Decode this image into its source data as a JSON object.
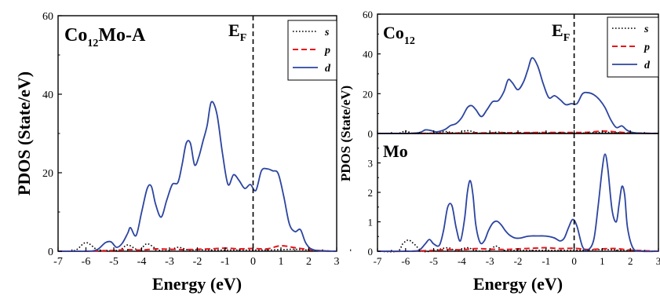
{
  "colors": {
    "s": "#000000",
    "p": "#e8141b",
    "d": "#2b44a0",
    "fermi": "#000000"
  },
  "chart_data": [
    {
      "id": "left",
      "type": "line",
      "title_main": "Co",
      "title_sub": "12",
      "title_rest": "Mo-A",
      "xlabel": "Energy (eV)",
      "ylabel": "PDOS (State/eV)",
      "xlim": [
        -7,
        3
      ],
      "ylim": [
        0,
        60
      ],
      "xticks": [
        "-7",
        "-6",
        "-5",
        "-4",
        "-3",
        "-2",
        "-1",
        "0",
        "1",
        "2",
        "3"
      ],
      "yticks": [
        "0",
        "20",
        "40",
        "60"
      ],
      "fermi_label_main": "E",
      "fermi_label_sub": "F",
      "fermi_x": 0,
      "legend": [
        "s",
        "p",
        "d"
      ],
      "series": [
        {
          "name": "s",
          "style": "dotted",
          "x": [
            -7,
            -6.4,
            -6.0,
            -5.6,
            -5.3,
            -4.8,
            -4.5,
            -4.1,
            -3.8,
            -3.4,
            -3.0,
            -2.7,
            -2.3,
            -2.0,
            -1.5,
            -1.0,
            -0.5,
            0,
            0.5,
            1.0,
            1.5,
            2.0,
            3.0
          ],
          "y": [
            0,
            0.2,
            2.2,
            0.4,
            0.2,
            0.3,
            1.6,
            0.3,
            1.9,
            0.3,
            0.2,
            1.0,
            0.3,
            0.4,
            0.3,
            0.3,
            0.3,
            0.3,
            0.3,
            0.4,
            0.5,
            0.3,
            0
          ]
        },
        {
          "name": "p",
          "style": "dashed",
          "x": [
            -7,
            -6.5,
            -6.0,
            -5.5,
            -5.0,
            -4.5,
            -4.0,
            -3.5,
            -3.0,
            -2.5,
            -2.0,
            -1.5,
            -1.0,
            -0.5,
            0,
            0.5,
            1.0,
            1.5,
            2.0,
            2.5,
            3.0
          ],
          "y": [
            0,
            0,
            0,
            0.1,
            0.2,
            0.4,
            0.3,
            0.6,
            0.5,
            0.4,
            0.5,
            0.6,
            0.8,
            0.6,
            0.7,
            0.6,
            1.4,
            0.9,
            0.4,
            0.1,
            0
          ]
        },
        {
          "name": "d",
          "style": "solid",
          "x": [
            -7,
            -6.0,
            -5.6,
            -5.3,
            -5.1,
            -4.9,
            -4.7,
            -4.5,
            -4.4,
            -4.2,
            -4.0,
            -3.8,
            -3.65,
            -3.5,
            -3.3,
            -3.1,
            -2.9,
            -2.7,
            -2.55,
            -2.4,
            -2.25,
            -2.1,
            -1.95,
            -1.8,
            -1.65,
            -1.5,
            -1.3,
            -1.1,
            -0.9,
            -0.7,
            -0.5,
            -0.3,
            -0.1,
            0.1,
            0.3,
            0.5,
            0.7,
            0.9,
            1.1,
            1.3,
            1.5,
            1.7,
            1.9,
            2.2,
            3.0
          ],
          "y": [
            0,
            0,
            0.4,
            2.2,
            2.4,
            1.0,
            2.0,
            4.6,
            6.0,
            4.0,
            10.0,
            16.0,
            16.5,
            12.0,
            8.7,
            13.0,
            17.0,
            17.5,
            22.0,
            27.5,
            27.5,
            22.0,
            24.0,
            28.0,
            32.0,
            38.0,
            35.0,
            25.0,
            17.0,
            19.5,
            18.0,
            16.0,
            17.0,
            15.5,
            20.5,
            21.0,
            20.5,
            19.8,
            14.0,
            7.0,
            5.0,
            5.5,
            2.0,
            0.3,
            0
          ]
        }
      ]
    },
    {
      "id": "right-top",
      "type": "line",
      "title_main": "Co",
      "title_sub": "12",
      "xlim": [
        -7,
        3
      ],
      "ylim": [
        0,
        60
      ],
      "yticks": [
        "0",
        "20",
        "40",
        "60"
      ],
      "fermi_label_main": "E",
      "fermi_label_sub": "F",
      "fermi_x": 0,
      "legend": [
        "s",
        "p",
        "d"
      ],
      "series": [
        {
          "name": "s",
          "style": "dotted",
          "x": [
            -7,
            -6.3,
            -6.0,
            -5.7,
            -5.0,
            -4.6,
            -4.2,
            -3.8,
            -3.4,
            -3.0,
            -2.7,
            -2.3,
            -1.5,
            -0.5,
            0,
            0.5,
            1.0,
            1.5,
            2.0,
            3.0
          ],
          "y": [
            0,
            0,
            1.2,
            0,
            0.2,
            1.0,
            0.2,
            1.4,
            0.2,
            0.2,
            0.7,
            0.2,
            0.3,
            0.3,
            0.2,
            0.3,
            0.6,
            0.5,
            0.2,
            0
          ]
        },
        {
          "name": "p",
          "style": "dashed",
          "x": [
            -7,
            -6.0,
            -5.0,
            -4.0,
            -3.0,
            -2.0,
            -1.0,
            0,
            0.5,
            1.0,
            1.5,
            2.0,
            3.0
          ],
          "y": [
            0,
            0,
            0.1,
            0.2,
            0.3,
            0.4,
            0.5,
            0.5,
            0.6,
            1.2,
            0.8,
            0.3,
            0
          ]
        },
        {
          "name": "d",
          "style": "solid",
          "x": [
            -7,
            -6.0,
            -5.5,
            -5.3,
            -5.1,
            -4.9,
            -4.6,
            -4.4,
            -4.2,
            -4.0,
            -3.8,
            -3.65,
            -3.5,
            -3.3,
            -3.1,
            -2.9,
            -2.7,
            -2.5,
            -2.35,
            -2.2,
            -2.0,
            -1.8,
            -1.65,
            -1.5,
            -1.3,
            -1.1,
            -0.9,
            -0.7,
            -0.5,
            -0.3,
            -0.1,
            0.1,
            0.3,
            0.5,
            0.7,
            0.9,
            1.1,
            1.3,
            1.5,
            1.7,
            1.9,
            2.2,
            3.0
          ],
          "y": [
            0,
            0,
            0.5,
            1.8,
            1.5,
            0.8,
            2.0,
            4.0,
            5.0,
            8.0,
            13.0,
            14.0,
            12.0,
            8.5,
            12.0,
            16.0,
            16.5,
            21.0,
            27.0,
            25.5,
            22.0,
            26.0,
            32.0,
            38.0,
            34.0,
            25.0,
            18.0,
            19.0,
            17.0,
            14.5,
            15.0,
            15.0,
            20.0,
            20.5,
            19.5,
            17.0,
            13.0,
            7.0,
            3.0,
            3.8,
            1.5,
            0.3,
            0
          ]
        }
      ]
    },
    {
      "id": "right-bottom",
      "type": "line",
      "title_main": "Mo",
      "xlabel": "Energy (eV)",
      "xlim": [
        -7,
        3
      ],
      "ylim": [
        0,
        4
      ],
      "xticks": [
        "-7",
        "-6",
        "-5",
        "-4",
        "-3",
        "-2",
        "-1",
        "0",
        "1",
        "2",
        "3"
      ],
      "yticks": [
        "0",
        "1",
        "2",
        "3"
      ],
      "fermi_x": 0,
      "series": [
        {
          "name": "s",
          "style": "dotted",
          "x": [
            -7,
            -6.3,
            -6.1,
            -5.9,
            -5.7,
            -5.4,
            -5.0,
            -4.5,
            -4.2,
            -3.8,
            -3.5,
            -3.0,
            -2.8,
            -2.5,
            -2.0,
            -1.0,
            0,
            0.5,
            1.0,
            1.5,
            2.0,
            3.0
          ],
          "y": [
            0,
            0,
            0.25,
            0.38,
            0.25,
            0,
            0.02,
            0.12,
            0.02,
            0.12,
            0.02,
            0.02,
            0.18,
            0.03,
            0.03,
            0.03,
            0.03,
            0.04,
            0.06,
            0.04,
            0.02,
            0
          ]
        },
        {
          "name": "p",
          "style": "dashed",
          "x": [
            -7,
            -6.0,
            -5.0,
            -4.5,
            -4.0,
            -3.5,
            -3.0,
            -2.5,
            -2.0,
            -1.5,
            -1.0,
            -0.5,
            0,
            0.5,
            1.0,
            1.5,
            2.0,
            3.0
          ],
          "y": [
            0,
            0,
            0.03,
            0.06,
            0.05,
            0.09,
            0.07,
            0.06,
            0.08,
            0.1,
            0.12,
            0.09,
            0.1,
            0.06,
            0.08,
            0.09,
            0.04,
            0
          ]
        },
        {
          "name": "d",
          "style": "solid",
          "x": [
            -7,
            -5.8,
            -5.5,
            -5.3,
            -5.15,
            -5.0,
            -4.8,
            -4.65,
            -4.5,
            -4.35,
            -4.2,
            -4.05,
            -3.9,
            -3.8,
            -3.7,
            -3.6,
            -3.5,
            -3.35,
            -3.2,
            -3.05,
            -2.9,
            -2.75,
            -2.6,
            -2.45,
            -2.3,
            -2.1,
            -1.9,
            -1.7,
            -1.5,
            -1.3,
            -1.1,
            -0.9,
            -0.7,
            -0.5,
            -0.35,
            -0.2,
            -0.05,
            0.1,
            0.3,
            0.5,
            0.7,
            0.85,
            1.0,
            1.1,
            1.2,
            1.35,
            1.5,
            1.6,
            1.7,
            1.8,
            1.9,
            2.1,
            2.4,
            3.0
          ],
          "y": [
            0,
            0,
            0.05,
            0.25,
            0.4,
            0.25,
            0.2,
            0.7,
            1.5,
            1.55,
            0.8,
            0.35,
            1.1,
            2.0,
            2.4,
            1.9,
            0.9,
            0.3,
            0.35,
            0.7,
            0.95,
            1.02,
            0.9,
            0.7,
            0.55,
            0.45,
            0.45,
            0.5,
            0.52,
            0.52,
            0.52,
            0.5,
            0.45,
            0.35,
            0.45,
            0.8,
            1.08,
            0.85,
            0.15,
            0.05,
            0.4,
            1.5,
            2.8,
            3.3,
            2.8,
            1.4,
            1.0,
            1.6,
            2.2,
            1.9,
            0.8,
            0.1,
            0,
            0
          ]
        }
      ]
    }
  ]
}
